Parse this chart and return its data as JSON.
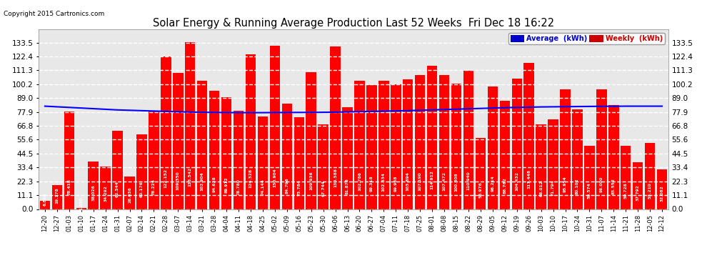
{
  "title": "Solar Energy & Running Average Production Last 52 Weeks  Fri Dec 18 16:22",
  "copyright": "Copyright 2015 Cartronics.com",
  "bar_color": "#ff0000",
  "avg_line_color": "#0000ff",
  "background_color": "#ffffff",
  "plot_bg_color": "#ffffff",
  "grid_color": "#aaaaaa",
  "legend_avg_label": "Average  (kWh)",
  "legend_weekly_label": "Weekly  (kWh)",
  "legend_avg_bg": "#0000cc",
  "legend_weekly_bg": "#cc0000",
  "yticks": [
    0.0,
    11.1,
    22.3,
    33.4,
    44.5,
    55.6,
    66.8,
    77.9,
    89.0,
    100.2,
    111.3,
    122.4,
    133.5
  ],
  "categories": [
    "12-20",
    "12-27",
    "01-03",
    "01-10",
    "01-17",
    "01-24",
    "01-31",
    "02-07",
    "02-14",
    "02-21",
    "02-28",
    "03-07",
    "03-14",
    "03-21",
    "03-28",
    "04-04",
    "04-11",
    "04-18",
    "04-25",
    "05-02",
    "05-09",
    "05-16",
    "05-23",
    "05-30",
    "06-06",
    "06-13",
    "06-20",
    "06-27",
    "07-04",
    "07-11",
    "07-18",
    "07-25",
    "08-01",
    "08-08",
    "08-15",
    "08-22",
    "08-29",
    "09-05",
    "09-12",
    "09-19",
    "09-26",
    "10-03",
    "10-10",
    "10-17",
    "10-24",
    "10-31",
    "11-07",
    "11-14",
    "11-21",
    "11-28",
    "12-05",
    "12-12"
  ],
  "weekly_values": [
    6.808,
    19.178,
    78.418,
    1.03,
    38.026,
    34.292,
    62.544,
    26.036,
    60.176,
    78.224,
    122.152,
    109.35,
    133.542,
    102.904,
    94.628,
    89.912,
    78.78,
    124.328,
    74.144,
    130.904,
    84.796,
    73.784,
    109.936,
    67.744,
    130.588,
    81.878,
    102.786,
    99.318,
    102.634,
    99.968,
    103.894,
    107.19,
    114.912,
    107.472,
    100.808,
    110.94,
    56.976,
    98.214,
    86.762,
    104.432,
    117.448,
    68.012,
    71.794,
    95.954,
    80.102,
    50.574,
    96.0,
    83.552,
    50.728,
    37.792,
    53.21,
    32.062
  ],
  "avg_values": [
    82.5,
    82.0,
    81.5,
    81.0,
    80.5,
    80.0,
    79.5,
    79.2,
    78.9,
    78.6,
    78.3,
    78.0,
    77.8,
    77.6,
    77.5,
    77.4,
    77.3,
    77.3,
    77.3,
    77.4,
    77.4,
    77.5,
    77.5,
    77.6,
    77.7,
    77.9,
    78.1,
    78.3,
    78.5,
    78.7,
    78.9,
    79.2,
    79.5,
    79.8,
    80.1,
    80.4,
    80.7,
    81.0,
    81.3,
    81.5,
    81.7,
    81.9,
    82.0,
    82.1,
    82.2,
    82.3,
    82.4,
    82.4,
    82.5,
    82.5,
    82.5,
    82.5
  ],
  "ylim": [
    0,
    144
  ]
}
